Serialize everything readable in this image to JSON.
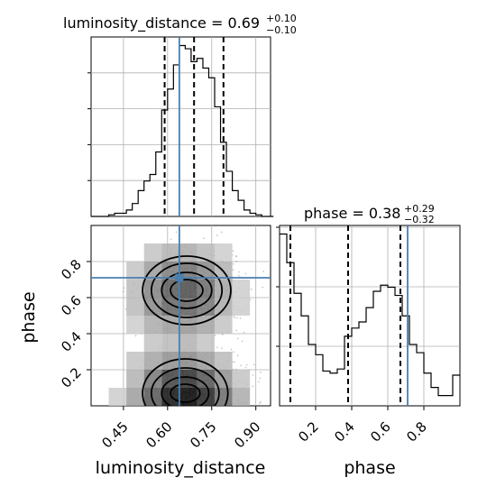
{
  "chart_data": {
    "type": "corner",
    "parameters": [
      "luminosity_distance",
      "phase"
    ],
    "titles": {
      "luminosity_distance": {
        "label": "luminosity_distance = 0.69",
        "plus": "+0.10",
        "minus": "−0.10"
      },
      "phase": {
        "label": "phase = 0.38",
        "plus": "+0.29",
        "minus": "−0.32"
      }
    },
    "xlabels": {
      "luminosity_distance": "luminosity_distance",
      "phase": "phase"
    },
    "ylabels": {
      "phase": "phase"
    },
    "xlim": {
      "luminosity_distance": [
        0.34,
        0.95
      ],
      "phase": [
        0.0,
        1.0
      ]
    },
    "ticks": {
      "luminosity_distance": [
        {
          "value": 0.45,
          "label": "0.45"
        },
        {
          "value": 0.6,
          "label": "0.60"
        },
        {
          "value": 0.75,
          "label": "0.75"
        },
        {
          "value": 0.9,
          "label": "0.90"
        }
      ],
      "phase": [
        {
          "value": 0.2,
          "label": "0.2"
        },
        {
          "value": 0.4,
          "label": "0.4"
        },
        {
          "value": 0.6,
          "label": "0.6"
        },
        {
          "value": 0.8,
          "label": "0.8"
        }
      ]
    },
    "truths": {
      "luminosity_distance": 0.64,
      "phase": 0.71
    },
    "quantiles": {
      "luminosity_distance": [
        0.59,
        0.69,
        0.79
      ],
      "phase": [
        0.06,
        0.38,
        0.67
      ]
    },
    "hist_luminosity_distance": {
      "bin_edges": [
        0.34,
        0.36,
        0.38,
        0.4,
        0.42,
        0.44,
        0.46,
        0.48,
        0.5,
        0.52,
        0.54,
        0.56,
        0.58,
        0.6,
        0.62,
        0.64,
        0.66,
        0.68,
        0.7,
        0.72,
        0.74,
        0.76,
        0.78,
        0.8,
        0.82,
        0.84,
        0.86,
        0.88,
        0.9,
        0.92,
        0.94,
        0.96
      ],
      "counts": [
        0,
        0,
        0,
        1,
        2,
        2,
        4,
        8,
        16,
        22,
        26,
        40,
        66,
        79,
        94,
        106,
        104,
        96,
        98,
        92,
        86,
        68,
        46,
        28,
        16,
        10,
        4,
        2,
        1,
        0,
        0
      ]
    },
    "hist_phase": {
      "bin_edges": [
        0.0,
        0.02,
        0.04,
        0.06,
        0.08,
        0.1,
        0.12,
        0.14,
        0.16,
        0.18,
        0.2,
        0.22,
        0.24,
        0.26,
        0.28,
        0.3,
        0.32,
        0.34,
        0.36,
        0.38,
        0.4,
        0.42,
        0.44,
        0.46,
        0.48,
        0.5,
        0.52,
        0.54,
        0.56,
        0.58,
        0.6,
        0.62,
        0.64,
        0.66,
        0.68,
        0.7,
        0.72,
        0.74,
        0.76,
        0.78,
        0.8,
        0.82,
        0.84,
        0.86,
        0.88,
        0.9,
        0.92,
        0.94,
        0.96,
        0.98,
        1.0
      ],
      "counts": [
        84,
        84,
        70,
        70,
        55,
        55,
        44,
        44,
        30,
        30,
        25,
        25,
        17,
        17,
        16,
        16,
        18,
        18,
        34,
        34,
        38,
        38,
        41,
        41,
        48,
        48,
        56,
        56,
        59,
        59,
        58,
        58,
        54,
        54,
        44,
        44,
        30,
        30,
        26,
        26,
        16,
        16,
        9,
        9,
        5,
        5,
        5,
        5,
        15,
        15
      ]
    },
    "hist2d": {
      "x_edges": [
        0.34,
        0.4,
        0.46,
        0.52,
        0.58,
        0.64,
        0.7,
        0.76,
        0.82,
        0.88,
        0.94
      ],
      "y_edges": [
        0.0,
        0.1,
        0.2,
        0.3,
        0.4,
        0.5,
        0.6,
        0.7,
        0.8,
        0.9,
        1.0
      ],
      "counts": [
        [
          1,
          2,
          8,
          20,
          34,
          38,
          30,
          16,
          6,
          1
        ],
        [
          0,
          1,
          5,
          14,
          24,
          28,
          20,
          10,
          3,
          0
        ],
        [
          0,
          1,
          3,
          7,
          10,
          11,
          8,
          4,
          1,
          0
        ],
        [
          0,
          0,
          1,
          3,
          4,
          5,
          3,
          1,
          0,
          0
        ],
        [
          0,
          1,
          2,
          6,
          8,
          9,
          7,
          3,
          1,
          0
        ],
        [
          0,
          1,
          4,
          11,
          17,
          18,
          14,
          6,
          2,
          0
        ],
        [
          0,
          1,
          4,
          12,
          19,
          22,
          16,
          7,
          2,
          0
        ],
        [
          0,
          1,
          3,
          8,
          13,
          15,
          11,
          5,
          1,
          0
        ],
        [
          0,
          0,
          1,
          3,
          5,
          6,
          4,
          2,
          0,
          0
        ],
        [
          0,
          0,
          0,
          1,
          1,
          1,
          1,
          0,
          0,
          0
        ]
      ]
    }
  }
}
